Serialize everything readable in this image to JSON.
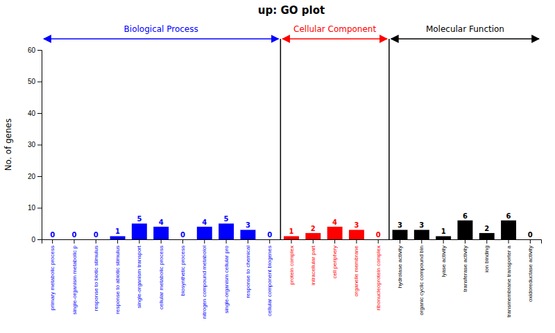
{
  "chart_data": {
    "type": "bar",
    "title": "up: GO plot",
    "ylabel": "No. of genes",
    "categories": [
      "primary metabolic process",
      "single-organism metabolic p",
      "response to biotic stimulus",
      "response to abiotic stimulus",
      "single-organism transport",
      "cellular metabolic process",
      "biosynthetic process",
      "nitrogen compound metabolol",
      "single-organism cellular pro",
      "response to chemical",
      "cellular component biogenes",
      "protein complex",
      "intracellular part",
      "cell periphery",
      "organelle membrane",
      "ribonucleoprotein complex",
      "hydrolase activity",
      "organic cyclic compound bin",
      "lyase activity",
      "transferase activity",
      "ion binding",
      "transmembrane transporter a",
      "oxidoreductase activity"
    ],
    "values": [
      0,
      0,
      0,
      1,
      5,
      4,
      0,
      4,
      5,
      3,
      0,
      1,
      2,
      4,
      3,
      0,
      3,
      3,
      1,
      6,
      2,
      6,
      0
    ],
    "colors": [
      "blue",
      "blue",
      "blue",
      "blue",
      "blue",
      "blue",
      "blue",
      "blue",
      "blue",
      "blue",
      "blue",
      "red",
      "red",
      "red",
      "red",
      "red",
      "black",
      "black",
      "black",
      "black",
      "black",
      "black",
      "black"
    ],
    "data_labels": true,
    "ylim": [
      0,
      60
    ],
    "yticks": [
      0,
      10,
      20,
      30,
      40,
      50,
      60
    ],
    "annotations": [
      {
        "text": "Biological Process",
        "color": "blue",
        "from": "primary metabolic process",
        "to": "cellular component biogenes"
      },
      {
        "text": "Cellular Component",
        "color": "red",
        "from": "protein complex",
        "to": "ribonucleoprotein complex"
      },
      {
        "text": "Molecular Function",
        "color": "black",
        "from": "hydrolase activity",
        "to": "oxidoreductase activity"
      }
    ]
  }
}
